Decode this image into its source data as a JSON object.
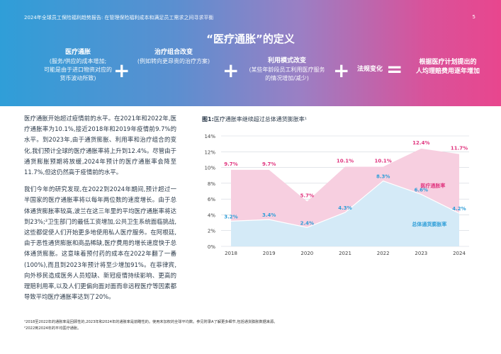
{
  "header": {
    "running_head": "2024年全球员工保险福利趋势报告: 在管理保险福利成本和满足员工需求之间寻求平衡",
    "page_number": "5",
    "title": "“医疗通胀”的定义"
  },
  "formula": {
    "terms": [
      {
        "title": "医疗通胀",
        "lines": [
          "(服务/供应的成本增加;",
          "可能是由于进口物资对应的",
          "货币波动所致)"
        ]
      },
      {
        "title": "治疗组合改变",
        "lines": [
          "(例如转向更昂贵的治疗方案)"
        ]
      },
      {
        "title": "利用模式改变",
        "lines": [
          "(某些年龄段员工利用医疗服务",
          "的情况增加/减少)"
        ]
      },
      {
        "title": "法规变化",
        "lines": []
      }
    ],
    "plus_symbol": "+",
    "equals_symbol": "=",
    "result_lines": [
      "根据医疗计划提出的",
      "人均理赔费用逐年增加"
    ]
  },
  "body": {
    "paragraphs": [
      "医疗通胀开始超过疫情前的水平。在2021年和2022年,医疗通胀率为10.1%,接近2018年和2019年疫情前9.7%的水平。到2023年,由于通货膨胀、利用率和治疗组合的变化,我们预计全球的医疗通胀率将上升到12.4%。尽管由于通货膨胀预期将放缓,2024年预计的医疗通胀率会降至11.7%,但这仍然高于疫情前的水平。",
      "我们今年的研究发现,在2022到2024年期间,预计超过一半国家的医疗通胀率将以每年两位数的速度增长。由于总体通货膨胀率较高,波兰在这三年里的平均医疗通胀率将达到23%;²卫生部门的最低工资增加,公共卫生系统面临挑战,这些都促使人们开始更多地使用私人医疗服务。在阿根廷,由于恶性通货膨胀和商品稀缺,医疗费用的增长速度快于总体通货膨胀。这意味着预付药的成本在2022年翻了一番(100%),而且到2023年预计将至少增加91%。在菲律宾,向外移民造成医务人员短缺、新冠疫情持续影响、更高的理赔利用率,以及人们更偏向面对面而非远程医疗等因素都导致平均医疗通胀率达到了20%。"
    ]
  },
  "chart_title": {
    "prefix": "图1:",
    "text": "医疗通胀率继续超过总体通货膨胀率¹"
  },
  "chart_data": {
    "type": "area",
    "title": "图1: 医疗通胀率继续超过总体通货膨胀率¹",
    "x": [
      "2018",
      "2019",
      "2020",
      "2021",
      "2022",
      "2023",
      "2024"
    ],
    "ylim": [
      0,
      14
    ],
    "yticks": [
      "0%",
      "2%",
      "4%",
      "6%",
      "8%",
      "10%",
      "12%",
      "14%"
    ],
    "grid": true,
    "series": [
      {
        "name": "医疗通胀率",
        "values": [
          9.7,
          9.7,
          5.7,
          10.1,
          10.1,
          12.4,
          11.7
        ],
        "labels": [
          "9.7%",
          "9.7%",
          "5.7%",
          "10.1%",
          "10.1%",
          "12.4%",
          "11.7%"
        ],
        "color": "#e0357f",
        "fill": "#f7cfe0"
      },
      {
        "name": "总体通货膨胀率",
        "values": [
          3.2,
          3.4,
          2.4,
          4.3,
          8.3,
          6.6,
          4.2
        ],
        "labels": [
          "3.2%",
          "3.4%",
          "2.4%",
          "4.3%",
          "8.3%",
          "6.6%",
          "4.2%"
        ],
        "color": "#2f9ed8",
        "fill": "#d4eaf7"
      }
    ]
  },
  "footnotes": [
    "¹2018至2022年的通胀率是回顾性的,2023年和2024年的通胀率是前瞻性的。使用未加权的全球平均数。参见附录A了解更多细节,包括通货膨胀数据来源。",
    "²2022到2024年的平均医疗通胀。"
  ]
}
